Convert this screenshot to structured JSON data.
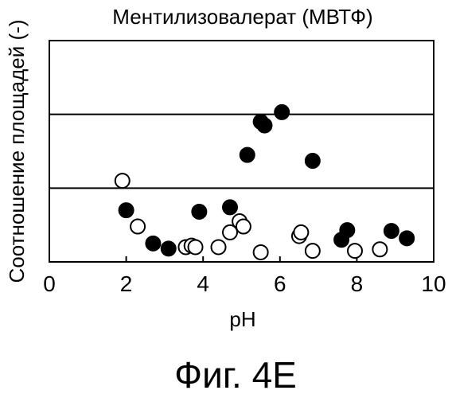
{
  "chart_data": {
    "type": "scatter",
    "title": "Ментилизовалерат (МВТФ)",
    "xlabel": "pH",
    "ylabel": "Соотношение площадей (-)",
    "xlim": [
      0,
      10
    ],
    "ylim": [
      0,
      3
    ],
    "x_ticks": [
      0,
      2,
      4,
      6,
      8,
      10
    ],
    "x_tick_labels": [
      "0",
      "2",
      "4",
      "6",
      "8",
      "10"
    ],
    "hlines": [
      1,
      2
    ],
    "y_tick_labels_shown": false,
    "grid": false,
    "legend": "none",
    "series": [
      {
        "marker": "filled-circle",
        "color": "#000000",
        "points": [
          {
            "x": 2.0,
            "y": 0.7
          },
          {
            "x": 2.7,
            "y": 0.25
          },
          {
            "x": 3.1,
            "y": 0.18
          },
          {
            "x": 3.9,
            "y": 0.68
          },
          {
            "x": 4.7,
            "y": 0.74
          },
          {
            "x": 5.15,
            "y": 1.45
          },
          {
            "x": 5.5,
            "y": 1.9
          },
          {
            "x": 5.6,
            "y": 1.85
          },
          {
            "x": 6.05,
            "y": 2.03
          },
          {
            "x": 6.85,
            "y": 1.37
          },
          {
            "x": 7.6,
            "y": 0.3
          },
          {
            "x": 7.75,
            "y": 0.43
          },
          {
            "x": 8.9,
            "y": 0.42
          },
          {
            "x": 9.3,
            "y": 0.32
          }
        ]
      },
      {
        "marker": "open-circle",
        "color": "#000000",
        "points": [
          {
            "x": 1.9,
            "y": 1.1
          },
          {
            "x": 2.3,
            "y": 0.48
          },
          {
            "x": 3.55,
            "y": 0.2
          },
          {
            "x": 3.7,
            "y": 0.22
          },
          {
            "x": 3.8,
            "y": 0.2
          },
          {
            "x": 4.4,
            "y": 0.2
          },
          {
            "x": 4.7,
            "y": 0.4
          },
          {
            "x": 4.95,
            "y": 0.55
          },
          {
            "x": 5.05,
            "y": 0.48
          },
          {
            "x": 5.5,
            "y": 0.13
          },
          {
            "x": 6.5,
            "y": 0.35
          },
          {
            "x": 6.55,
            "y": 0.4
          },
          {
            "x": 6.85,
            "y": 0.15
          },
          {
            "x": 7.95,
            "y": 0.15
          },
          {
            "x": 8.6,
            "y": 0.17
          }
        ]
      }
    ]
  },
  "caption": "Фиг. 4E"
}
